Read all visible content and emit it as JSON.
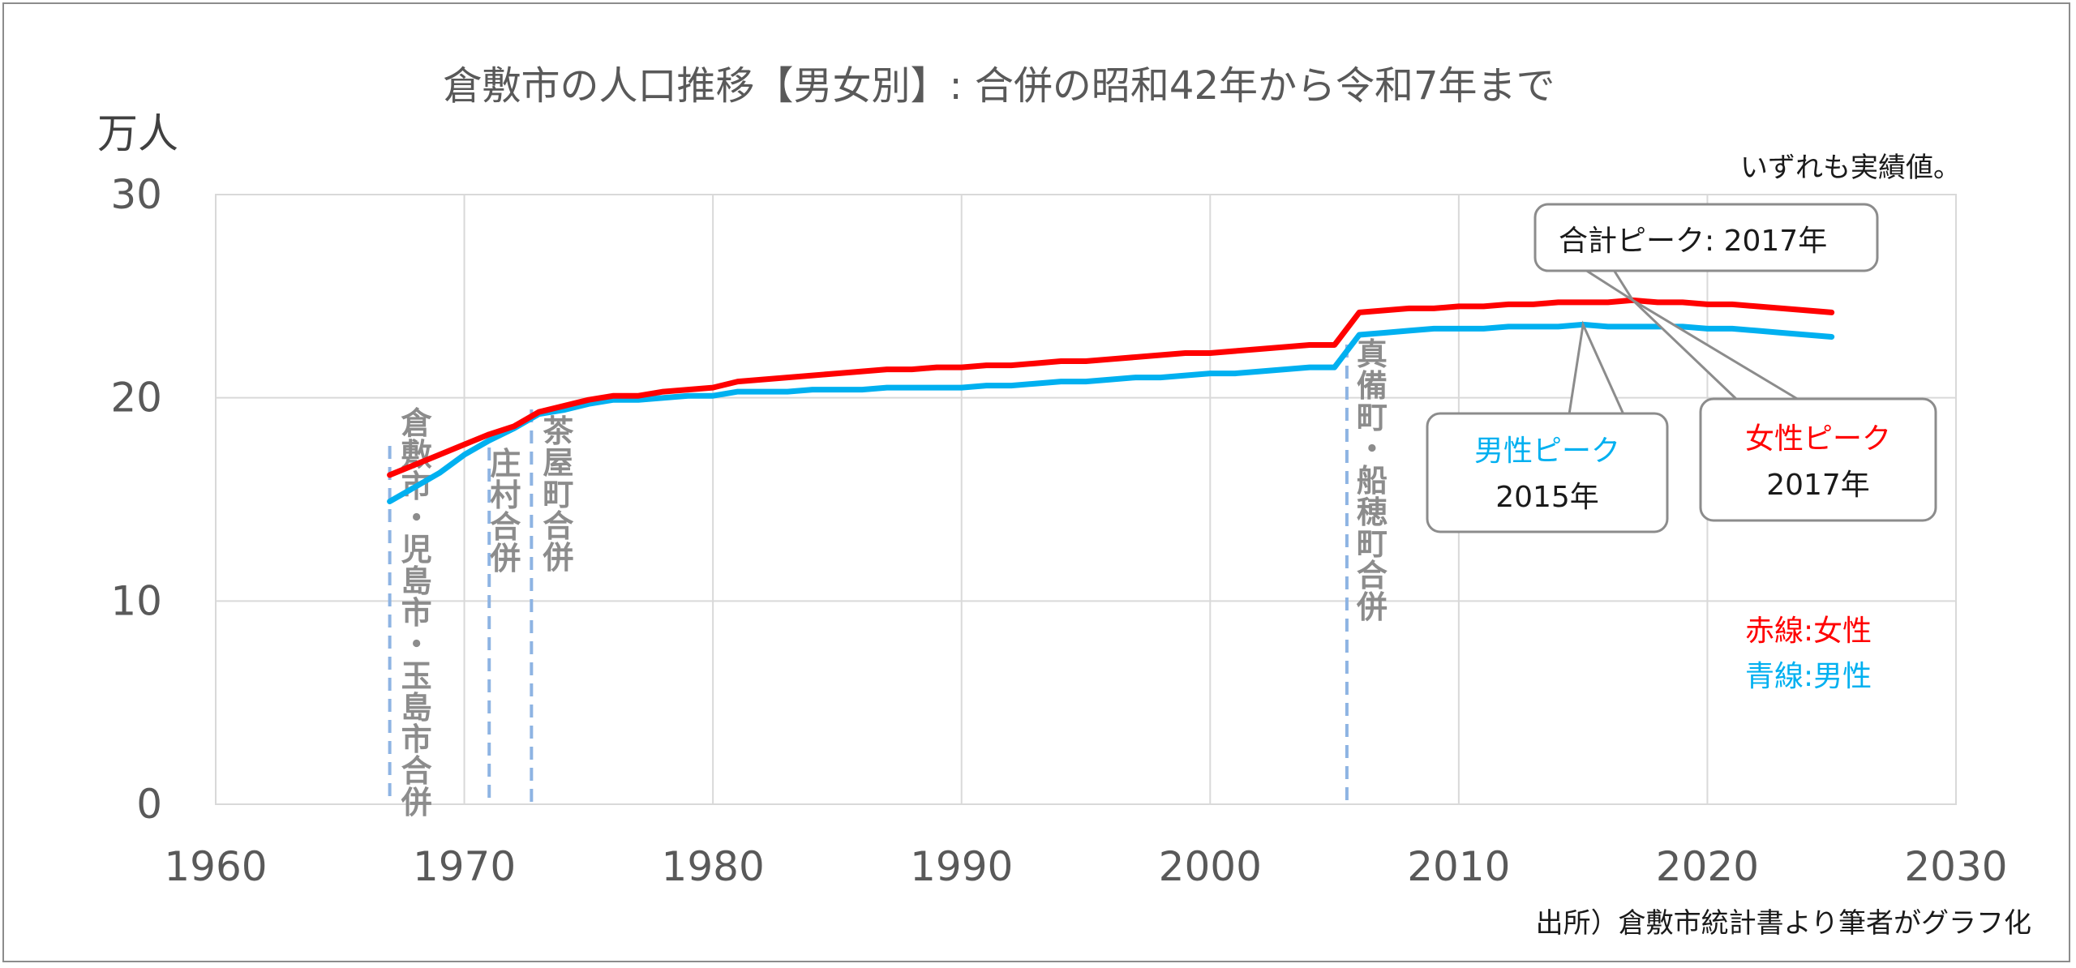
{
  "chart_data": {
    "type": "line",
    "title": "倉敷市の人口推移【男女別】: 合併の昭和42年から令和7年まで",
    "ylabel": "万人",
    "xlabel": "",
    "note": "いずれも実績値。",
    "source": "出所）倉敷市統計書より筆者がグラフ化",
    "xlim": [
      1960,
      2030
    ],
    "ylim": [
      0,
      30
    ],
    "x_ticks": [
      "1960",
      "1970",
      "1980",
      "1990",
      "2000",
      "2010",
      "2020",
      "2030"
    ],
    "y_ticks": [
      "0",
      "10",
      "20",
      "30"
    ],
    "grid": true,
    "series": [
      {
        "name": "女性",
        "color": "#ff0000",
        "points": [
          [
            1967,
            16.2
          ],
          [
            1968,
            16.7
          ],
          [
            1969,
            17.2
          ],
          [
            1970,
            17.7
          ],
          [
            1971,
            18.2
          ],
          [
            1972,
            18.6
          ],
          [
            1973,
            19.3
          ],
          [
            1974,
            19.6
          ],
          [
            1975,
            19.9
          ],
          [
            1976,
            20.1
          ],
          [
            1977,
            20.1
          ],
          [
            1978,
            20.3
          ],
          [
            1979,
            20.4
          ],
          [
            1980,
            20.5
          ],
          [
            1981,
            20.8
          ],
          [
            1982,
            20.9
          ],
          [
            1983,
            21.0
          ],
          [
            1984,
            21.1
          ],
          [
            1985,
            21.2
          ],
          [
            1986,
            21.3
          ],
          [
            1987,
            21.4
          ],
          [
            1988,
            21.4
          ],
          [
            1989,
            21.5
          ],
          [
            1990,
            21.5
          ],
          [
            1991,
            21.6
          ],
          [
            1992,
            21.6
          ],
          [
            1993,
            21.7
          ],
          [
            1994,
            21.8
          ],
          [
            1995,
            21.8
          ],
          [
            1996,
            21.9
          ],
          [
            1997,
            22.0
          ],
          [
            1998,
            22.1
          ],
          [
            1999,
            22.2
          ],
          [
            2000,
            22.2
          ],
          [
            2001,
            22.3
          ],
          [
            2002,
            22.4
          ],
          [
            2003,
            22.5
          ],
          [
            2004,
            22.6
          ],
          [
            2005,
            22.6
          ],
          [
            2006,
            24.2
          ],
          [
            2007,
            24.3
          ],
          [
            2008,
            24.4
          ],
          [
            2009,
            24.4
          ],
          [
            2010,
            24.5
          ],
          [
            2011,
            24.5
          ],
          [
            2012,
            24.6
          ],
          [
            2013,
            24.6
          ],
          [
            2014,
            24.7
          ],
          [
            2015,
            24.7
          ],
          [
            2016,
            24.7
          ],
          [
            2017,
            24.8
          ],
          [
            2018,
            24.7
          ],
          [
            2019,
            24.7
          ],
          [
            2020,
            24.6
          ],
          [
            2021,
            24.6
          ],
          [
            2022,
            24.5
          ],
          [
            2023,
            24.4
          ],
          [
            2024,
            24.3
          ],
          [
            2025,
            24.2
          ]
        ]
      },
      {
        "name": "男性",
        "color": "#00b0f0",
        "points": [
          [
            1967,
            14.9
          ],
          [
            1968,
            15.6
          ],
          [
            1969,
            16.3
          ],
          [
            1970,
            17.2
          ],
          [
            1971,
            17.9
          ],
          [
            1972,
            18.5
          ],
          [
            1973,
            19.2
          ],
          [
            1974,
            19.4
          ],
          [
            1975,
            19.7
          ],
          [
            1976,
            19.9
          ],
          [
            1977,
            19.9
          ],
          [
            1978,
            20.0
          ],
          [
            1979,
            20.1
          ],
          [
            1980,
            20.1
          ],
          [
            1981,
            20.3
          ],
          [
            1982,
            20.3
          ],
          [
            1983,
            20.3
          ],
          [
            1984,
            20.4
          ],
          [
            1985,
            20.4
          ],
          [
            1986,
            20.4
          ],
          [
            1987,
            20.5
          ],
          [
            1988,
            20.5
          ],
          [
            1989,
            20.5
          ],
          [
            1990,
            20.5
          ],
          [
            1991,
            20.6
          ],
          [
            1992,
            20.6
          ],
          [
            1993,
            20.7
          ],
          [
            1994,
            20.8
          ],
          [
            1995,
            20.8
          ],
          [
            1996,
            20.9
          ],
          [
            1997,
            21.0
          ],
          [
            1998,
            21.0
          ],
          [
            1999,
            21.1
          ],
          [
            2000,
            21.2
          ],
          [
            2001,
            21.2
          ],
          [
            2002,
            21.3
          ],
          [
            2003,
            21.4
          ],
          [
            2004,
            21.5
          ],
          [
            2005,
            21.5
          ],
          [
            2006,
            23.1
          ],
          [
            2007,
            23.2
          ],
          [
            2008,
            23.3
          ],
          [
            2009,
            23.4
          ],
          [
            2010,
            23.4
          ],
          [
            2011,
            23.4
          ],
          [
            2012,
            23.5
          ],
          [
            2013,
            23.5
          ],
          [
            2014,
            23.5
          ],
          [
            2015,
            23.6
          ],
          [
            2016,
            23.5
          ],
          [
            2017,
            23.5
          ],
          [
            2018,
            23.5
          ],
          [
            2019,
            23.5
          ],
          [
            2020,
            23.4
          ],
          [
            2021,
            23.4
          ],
          [
            2022,
            23.3
          ],
          [
            2023,
            23.2
          ],
          [
            2024,
            23.1
          ],
          [
            2025,
            23.0
          ]
        ]
      }
    ],
    "merger_lines": [
      {
        "x": 1967,
        "label": "倉敷市・児島市・玉島市合併"
      },
      {
        "x": 1971,
        "label": "庄村合併"
      },
      {
        "x": 1972.7,
        "label": "茶屋町合併"
      },
      {
        "x": 2005.5,
        "label": "真備町・船穂町合併"
      }
    ],
    "callouts": {
      "total": {
        "label": "合計ピーク",
        "sep": ": ",
        "year": "2017年",
        "x": 2017
      },
      "male": {
        "label": "男性ピーク",
        "year": "2015年",
        "x": 2015,
        "color": "#00b0f0"
      },
      "female": {
        "label": "女性ピーク",
        "year": "2017年",
        "x": 2017,
        "color": "#ff0000"
      }
    },
    "legend": [
      {
        "label": "赤線",
        "sep": ":",
        "name": "女性",
        "color": "#ff0000"
      },
      {
        "label": "青線",
        "sep": ":",
        "name": "男性",
        "color": "#00b0f0"
      }
    ]
  }
}
